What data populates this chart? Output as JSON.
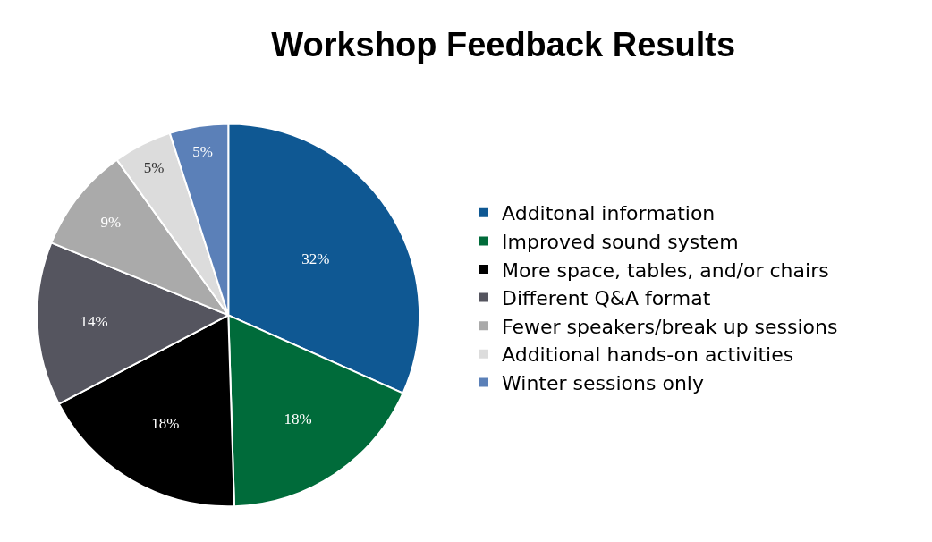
{
  "chart_data": {
    "type": "pie",
    "title": "Workshop Feedback Results",
    "categories": [
      "Additonal information",
      "Improved sound system",
      "More space, tables, and/or chairs",
      "Different Q&A format",
      "Fewer speakers/break up sessions",
      "Additional hands-on activities",
      "Winter sessions only"
    ],
    "values": [
      32,
      18,
      18,
      14,
      9,
      5,
      5
    ],
    "value_labels": [
      "32%",
      "18%",
      "18%",
      "14%",
      "9%",
      "5%",
      "5%"
    ],
    "colors": [
      "#0f5893",
      "#006b3a",
      "#000000",
      "#55555f",
      "#aaaaaa",
      "#dcdcdc",
      "#5b80b8"
    ],
    "legend": "right"
  }
}
